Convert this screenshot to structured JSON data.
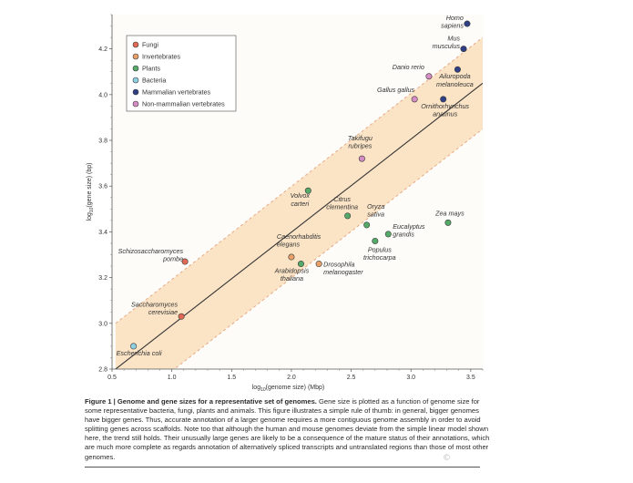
{
  "chart_data": {
    "type": "scatter",
    "xlabel": "log10(genome size) (Mbp)",
    "ylabel": "log10(gene size) (bp)",
    "xlim": [
      0.5,
      3.6
    ],
    "ylim": [
      2.8,
      4.35
    ],
    "xticks": [
      0.5,
      1.0,
      1.5,
      2.0,
      2.5,
      3.0,
      3.5
    ],
    "xtick_labels": [
      "0.5",
      "1.0",
      "1.5",
      "2.0",
      "2.5",
      "3.0",
      "3.5"
    ],
    "yticks": [
      2.8,
      3.0,
      3.2,
      3.4,
      3.6,
      3.8,
      4.0,
      4.2
    ],
    "ytick_labels": [
      "2.8",
      "3.0",
      "3.2",
      "3.4",
      "3.6",
      "3.8",
      "4.0",
      "4.2"
    ],
    "grid": false,
    "legend_position": "top-left",
    "trend": {
      "start": [
        0.53,
        2.8
      ],
      "end": [
        3.6,
        4.05
      ],
      "band_offset": 0.2
    },
    "categories": [
      {
        "name": "Fungi",
        "color": "#e06a55"
      },
      {
        "name": "Invertebrates",
        "color": "#e8a068"
      },
      {
        "name": "Plants",
        "color": "#55aa6a"
      },
      {
        "name": "Bacteria",
        "color": "#8fd0e3"
      },
      {
        "name": "Mammalian vertebrates",
        "color": "#2e3f86"
      },
      {
        "name": "Non-mammalian vertebrates",
        "color": "#d68cc4"
      }
    ],
    "points": [
      {
        "name": "Homo sapiens",
        "lines": [
          "Homo",
          "sapiens"
        ],
        "category": "Mammalian vertebrates",
        "x": 3.47,
        "y": 4.31,
        "anchor": "end",
        "dx": -4,
        "dy": -4
      },
      {
        "name": "Mus musculus",
        "lines": [
          "Mus",
          "musculus"
        ],
        "category": "Mammalian vertebrates",
        "x": 3.44,
        "y": 4.2,
        "anchor": "end",
        "dx": -4,
        "dy": -9
      },
      {
        "name": "Ailuropoda melanoleuca",
        "lines": [
          "Ailuropoda",
          "melanoleuca"
        ],
        "category": "Mammalian vertebrates",
        "x": 3.39,
        "y": 4.11,
        "anchor": "middle",
        "dx": -3,
        "dy": 10
      },
      {
        "name": "Ornithorhynchus anatinus",
        "lines": [
          "Ornithorhynchus",
          "anatinus"
        ],
        "category": "Mammalian vertebrates",
        "x": 3.27,
        "y": 3.98,
        "anchor": "middle",
        "dx": 2,
        "dy": 10
      },
      {
        "name": "Danio rerio",
        "lines": [
          "Danio rerio"
        ],
        "category": "Non-mammalian vertebrates",
        "x": 3.15,
        "y": 4.08,
        "anchor": "end",
        "dx": -5,
        "dy": -8
      },
      {
        "name": "Gallus gallus",
        "lines": [
          "Gallus gallus"
        ],
        "category": "Non-mammalian vertebrates",
        "x": 3.03,
        "y": 3.98,
        "anchor": "end",
        "dx": 0,
        "dy": -8
      },
      {
        "name": "Takifugu rubripes",
        "lines": [
          "Takifugu",
          "rubripes"
        ],
        "category": "Non-mammalian vertebrates",
        "x": 2.59,
        "y": 3.72,
        "anchor": "middle",
        "dx": -2,
        "dy": -20
      },
      {
        "name": "Volvox carteri",
        "lines": [
          "Volvox",
          "carteri"
        ],
        "category": "Plants",
        "x": 2.14,
        "y": 3.58,
        "anchor": "middle",
        "dx": -9,
        "dy": 8
      },
      {
        "name": "Citrus clementina",
        "lines": [
          "Citrus",
          "clementina"
        ],
        "category": "Plants",
        "x": 2.47,
        "y": 3.47,
        "anchor": "middle",
        "dx": -6,
        "dy": -16
      },
      {
        "name": "Oryza sativa",
        "lines": [
          "Oryza",
          "sativa"
        ],
        "category": "Plants",
        "x": 2.63,
        "y": 3.43,
        "anchor": "middle",
        "dx": 10,
        "dy": -18
      },
      {
        "name": "Eucalyptus grandis",
        "lines": [
          "Eucalyptus",
          "grandis"
        ],
        "category": "Plants",
        "x": 2.81,
        "y": 3.39,
        "anchor": "start",
        "dx": 5,
        "dy": -6
      },
      {
        "name": "Populus trichocarpa",
        "lines": [
          "Populus",
          "trichocarpa"
        ],
        "category": "Plants",
        "x": 2.7,
        "y": 3.36,
        "anchor": "middle",
        "dx": 5,
        "dy": 12
      },
      {
        "name": "Zea mays",
        "lines": [
          "Zea mays"
        ],
        "category": "Plants",
        "x": 3.31,
        "y": 3.44,
        "anchor": "middle",
        "dx": 2,
        "dy": -8
      },
      {
        "name": "Arabidopsis thaliana",
        "lines": [
          "Arabidopsis",
          "thaliana"
        ],
        "category": "Plants",
        "x": 2.08,
        "y": 3.26,
        "anchor": "middle",
        "dx": -10,
        "dy": 10
      },
      {
        "name": "Caenorhabditis elegans",
        "lines": [
          "Caenorhabditis",
          "elegans"
        ],
        "category": "Invertebrates",
        "x": 2.0,
        "y": 3.29,
        "anchor": "start",
        "dx": -16,
        "dy": -20
      },
      {
        "name": "Drosophila melanogaster",
        "lines": [
          "Drosophila",
          "melanogaster"
        ],
        "category": "Invertebrates",
        "x": 2.23,
        "y": 3.26,
        "anchor": "start",
        "dx": 5,
        "dy": 3
      },
      {
        "name": "Schizosaccharomyces pombe",
        "lines": [
          "Schizosaccharomyces",
          "pombe"
        ],
        "category": "Fungi",
        "x": 1.11,
        "y": 3.27,
        "anchor": "end",
        "dx": -2,
        "dy": -9
      },
      {
        "name": "Saccharomyces cerevisiae",
        "lines": [
          "Saccharomyces",
          "cerevisiae"
        ],
        "category": "Fungi",
        "x": 1.08,
        "y": 3.03,
        "anchor": "end",
        "dx": -4,
        "dy": -11
      },
      {
        "name": "Escherichia coli",
        "lines": [
          "Escherichia coli"
        ],
        "category": "Bacteria",
        "x": 0.68,
        "y": 2.9,
        "anchor": "start",
        "dx": -19,
        "dy": 10
      }
    ]
  },
  "caption": {
    "figure_label": "Figure 1 | Genome and gene sizes for a representative set of genomes.",
    "text": " Gene size is plotted as a function of genome size for some representative bacteria, fungi, plants and animals. This figure illustrates a simple rule of thumb: in general, bigger genomes have bigger genes. Thus, accurate annotation of a larger genome requires a more contiguous genome assembly in order to avoid splitting genes across scaffolds. Note too that although the human and mouse genomes deviate from the simple linear model shown here, the trend still holds. Their unusually large genes are likely to be a consequence of the mature status of their annotations, which are much more complete as regards annotation of alternatively spliced transcripts and untranslated regions than those of most other genomes."
  },
  "watermark": "©"
}
